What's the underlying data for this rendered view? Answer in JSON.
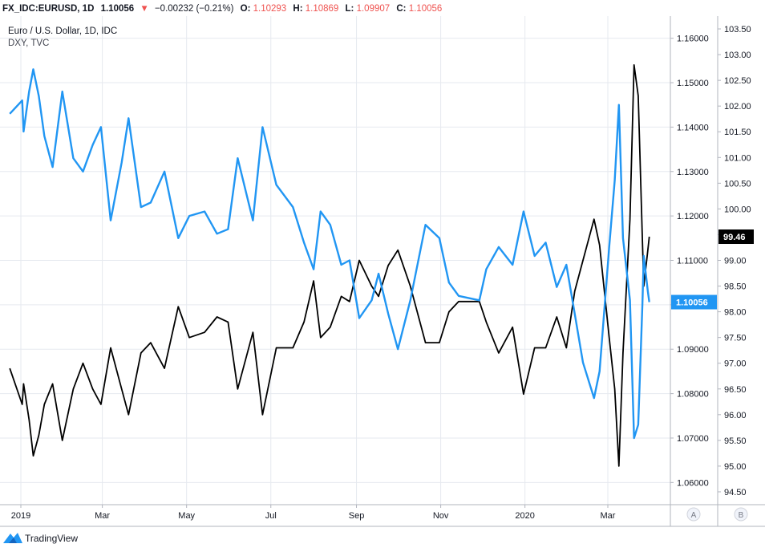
{
  "header": {
    "symbol": "FX_IDC:EURUSD, 1D",
    "last": "1.10056",
    "arrow": "▼",
    "change": "−0.00232 (−0.21%)",
    "open_label": "O:",
    "open": "1.10293",
    "high_label": "H:",
    "high": "1.10869",
    "low_label": "L:",
    "low": "1.09907",
    "close_label": "C:",
    "close": "1.10056"
  },
  "legend": {
    "line1": "Euro / U.S. Dollar, 1D, IDC",
    "line2": "DXY, TVC"
  },
  "brand": {
    "name": "TradingView"
  },
  "scale_buttons": {
    "a": "A",
    "b": "B"
  },
  "colors": {
    "eurusd": "#2196f3",
    "dxy": "#000000",
    "down": "#ef5350",
    "grid": "#e6e9ef",
    "axis_text": "#131722"
  },
  "chart_data": {
    "type": "line",
    "x_ticks": [
      "2019",
      "Mar",
      "May",
      "Jul",
      "Sep",
      "Nov",
      "2020",
      "Mar"
    ],
    "x_tick_dates": [
      "2019-01-01",
      "2019-03-01",
      "2019-05-01",
      "2019-07-01",
      "2019-09-01",
      "2019-11-01",
      "2020-01-01",
      "2020-03-01"
    ],
    "ylim_left": [
      1.055,
      1.165
    ],
    "ylim_right": [
      94.25,
      103.75
    ],
    "y_ticks_left": [
      "1.06000",
      "1.07000",
      "1.08000",
      "1.09000",
      "1.10000",
      "1.11000",
      "1.12000",
      "1.13000",
      "1.14000",
      "1.15000",
      "1.16000"
    ],
    "y_ticks_right": [
      "94.50",
      "95.00",
      "95.50",
      "96.00",
      "96.50",
      "97.00",
      "97.50",
      "98.00",
      "98.50",
      "99.00",
      "99.50",
      "100.00",
      "100.50",
      "101.00",
      "101.50",
      "102.00",
      "102.50",
      "103.00",
      "103.50"
    ],
    "last_labels": {
      "eurusd": "1.10056",
      "dxy": "99.46"
    },
    "series": [
      {
        "name": "Euro / U.S. Dollar, 1D, IDC",
        "scale": "left",
        "color": "#2196f3",
        "points": [
          [
            "2018-12-24",
            1.143
          ],
          [
            "2019-01-02",
            1.146
          ],
          [
            "2019-01-03",
            1.139
          ],
          [
            "2019-01-07",
            1.148
          ],
          [
            "2019-01-10",
            1.153
          ],
          [
            "2019-01-14",
            1.147
          ],
          [
            "2019-01-18",
            1.138
          ],
          [
            "2019-01-24",
            1.131
          ],
          [
            "2019-01-31",
            1.148
          ],
          [
            "2019-02-08",
            1.133
          ],
          [
            "2019-02-15",
            1.13
          ],
          [
            "2019-02-22",
            1.136
          ],
          [
            "2019-02-28",
            1.14
          ],
          [
            "2019-03-07",
            1.119
          ],
          [
            "2019-03-15",
            1.132
          ],
          [
            "2019-03-20",
            1.142
          ],
          [
            "2019-03-29",
            1.122
          ],
          [
            "2019-04-05",
            1.123
          ],
          [
            "2019-04-15",
            1.13
          ],
          [
            "2019-04-25",
            1.115
          ],
          [
            "2019-05-03",
            1.12
          ],
          [
            "2019-05-14",
            1.121
          ],
          [
            "2019-05-23",
            1.116
          ],
          [
            "2019-05-31",
            1.117
          ],
          [
            "2019-06-07",
            1.133
          ],
          [
            "2019-06-18",
            1.119
          ],
          [
            "2019-06-25",
            1.14
          ],
          [
            "2019-07-05",
            1.127
          ],
          [
            "2019-07-17",
            1.122
          ],
          [
            "2019-07-25",
            1.114
          ],
          [
            "2019-08-01",
            1.108
          ],
          [
            "2019-08-06",
            1.121
          ],
          [
            "2019-08-13",
            1.118
          ],
          [
            "2019-08-21",
            1.109
          ],
          [
            "2019-08-27",
            1.11
          ],
          [
            "2019-09-03",
            1.097
          ],
          [
            "2019-09-12",
            1.101
          ],
          [
            "2019-09-17",
            1.107
          ],
          [
            "2019-09-24",
            1.098
          ],
          [
            "2019-10-01",
            1.09
          ],
          [
            "2019-10-10",
            1.101
          ],
          [
            "2019-10-21",
            1.118
          ],
          [
            "2019-10-31",
            1.115
          ],
          [
            "2019-11-07",
            1.105
          ],
          [
            "2019-11-14",
            1.102
          ],
          [
            "2019-11-29",
            1.101
          ],
          [
            "2019-12-04",
            1.108
          ],
          [
            "2019-12-13",
            1.113
          ],
          [
            "2019-12-23",
            1.109
          ],
          [
            "2019-12-31",
            1.121
          ],
          [
            "2020-01-08",
            1.111
          ],
          [
            "2020-01-16",
            1.114
          ],
          [
            "2020-01-24",
            1.104
          ],
          [
            "2020-01-31",
            1.109
          ],
          [
            "2020-02-06",
            1.098
          ],
          [
            "2020-02-12",
            1.087
          ],
          [
            "2020-02-20",
            1.079
          ],
          [
            "2020-02-24",
            1.085
          ],
          [
            "2020-03-02",
            1.113
          ],
          [
            "2020-03-06",
            1.128
          ],
          [
            "2020-03-09",
            1.145
          ],
          [
            "2020-03-12",
            1.115
          ],
          [
            "2020-03-17",
            1.101
          ],
          [
            "2020-03-20",
            1.07
          ],
          [
            "2020-03-23",
            1.073
          ],
          [
            "2020-03-26",
            1.1
          ],
          [
            "2020-03-27",
            1.111
          ],
          [
            "2020-03-30",
            1.103
          ],
          [
            "2020-03-31",
            1.1006
          ]
        ]
      },
      {
        "name": "DXY, TVC",
        "scale": "right",
        "color": "#000000",
        "points": [
          [
            "2018-12-24",
            96.9
          ],
          [
            "2019-01-02",
            96.2
          ],
          [
            "2019-01-03",
            96.6
          ],
          [
            "2019-01-07",
            95.9
          ],
          [
            "2019-01-10",
            95.2
          ],
          [
            "2019-01-14",
            95.6
          ],
          [
            "2019-01-18",
            96.2
          ],
          [
            "2019-01-24",
            96.6
          ],
          [
            "2019-01-31",
            95.5
          ],
          [
            "2019-02-08",
            96.5
          ],
          [
            "2019-02-15",
            97.0
          ],
          [
            "2019-02-22",
            96.5
          ],
          [
            "2019-02-28",
            96.2
          ],
          [
            "2019-03-07",
            97.3
          ],
          [
            "2019-03-15",
            96.5
          ],
          [
            "2019-03-20",
            96.0
          ],
          [
            "2019-03-29",
            97.2
          ],
          [
            "2019-04-05",
            97.4
          ],
          [
            "2019-04-15",
            96.9
          ],
          [
            "2019-04-25",
            98.1
          ],
          [
            "2019-05-03",
            97.5
          ],
          [
            "2019-05-14",
            97.6
          ],
          [
            "2019-05-23",
            97.9
          ],
          [
            "2019-05-31",
            97.8
          ],
          [
            "2019-06-07",
            96.5
          ],
          [
            "2019-06-18",
            97.6
          ],
          [
            "2019-06-25",
            96.0
          ],
          [
            "2019-07-05",
            97.3
          ],
          [
            "2019-07-17",
            97.3
          ],
          [
            "2019-07-25",
            97.8
          ],
          [
            "2019-08-01",
            98.6
          ],
          [
            "2019-08-06",
            97.5
          ],
          [
            "2019-08-13",
            97.7
          ],
          [
            "2019-08-21",
            98.3
          ],
          [
            "2019-08-27",
            98.2
          ],
          [
            "2019-09-03",
            99.0
          ],
          [
            "2019-09-12",
            98.5
          ],
          [
            "2019-09-17",
            98.3
          ],
          [
            "2019-09-24",
            98.9
          ],
          [
            "2019-10-01",
            99.2
          ],
          [
            "2019-10-10",
            98.5
          ],
          [
            "2019-10-21",
            97.4
          ],
          [
            "2019-10-31",
            97.4
          ],
          [
            "2019-11-07",
            98.0
          ],
          [
            "2019-11-14",
            98.2
          ],
          [
            "2019-11-29",
            98.2
          ],
          [
            "2019-12-04",
            97.8
          ],
          [
            "2019-12-13",
            97.2
          ],
          [
            "2019-12-23",
            97.7
          ],
          [
            "2019-12-31",
            96.4
          ],
          [
            "2020-01-08",
            97.3
          ],
          [
            "2020-01-16",
            97.3
          ],
          [
            "2020-01-24",
            97.9
          ],
          [
            "2020-01-31",
            97.3
          ],
          [
            "2020-02-06",
            98.4
          ],
          [
            "2020-02-12",
            99.0
          ],
          [
            "2020-02-20",
            99.8
          ],
          [
            "2020-02-24",
            99.3
          ],
          [
            "2020-03-02",
            97.5
          ],
          [
            "2020-03-06",
            96.5
          ],
          [
            "2020-03-09",
            95.0
          ],
          [
            "2020-03-12",
            97.2
          ],
          [
            "2020-03-17",
            99.8
          ],
          [
            "2020-03-20",
            102.8
          ],
          [
            "2020-03-23",
            102.2
          ],
          [
            "2020-03-26",
            99.4
          ],
          [
            "2020-03-27",
            98.5
          ],
          [
            "2020-03-30",
            99.2
          ],
          [
            "2020-03-31",
            99.46
          ]
        ]
      }
    ]
  }
}
